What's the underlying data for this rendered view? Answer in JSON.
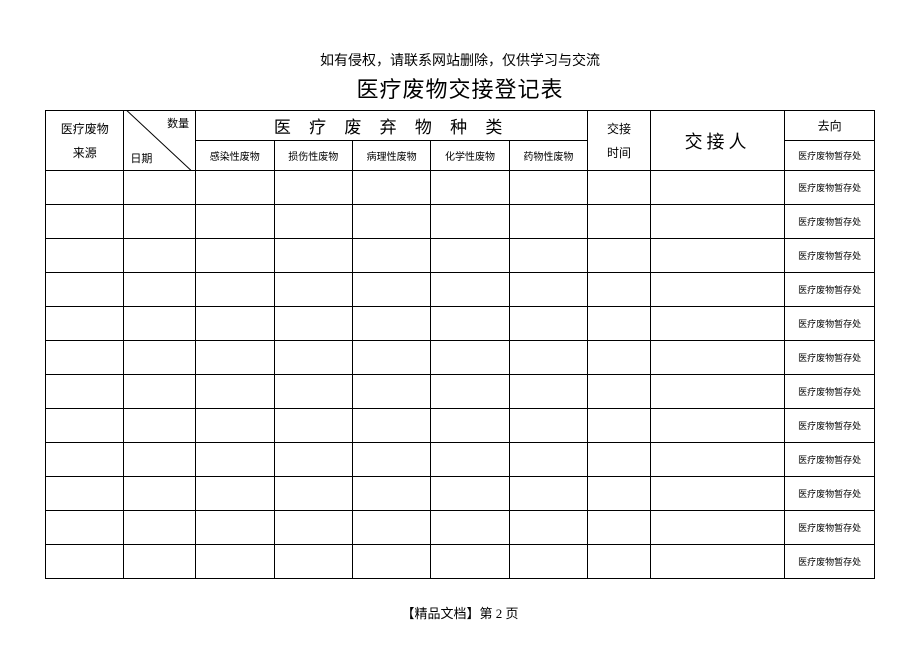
{
  "notice": "如有侵权，请联系网站删除，仅供学习与交流",
  "title": "医疗废物交接登记表",
  "header": {
    "source": "医疗废物\n来源",
    "quantity": "数量",
    "date": "日期",
    "waste_types_title": "医 疗 废 弃 物 种 类",
    "waste_types": [
      "感染性废物",
      "损伤性废物",
      "病理性废物",
      "化学性废物",
      "药物性废物"
    ],
    "handover_time": "交接\n时间",
    "handover_person": "交接人",
    "destination": "去向",
    "destination_value": "医疗废物暂存处"
  },
  "data_rows_count": 12,
  "row_destination": "医疗废物暂存处",
  "footer": "【精品文档】第 2 页",
  "colors": {
    "text": "#000000",
    "border": "#000000",
    "background": "#ffffff"
  }
}
